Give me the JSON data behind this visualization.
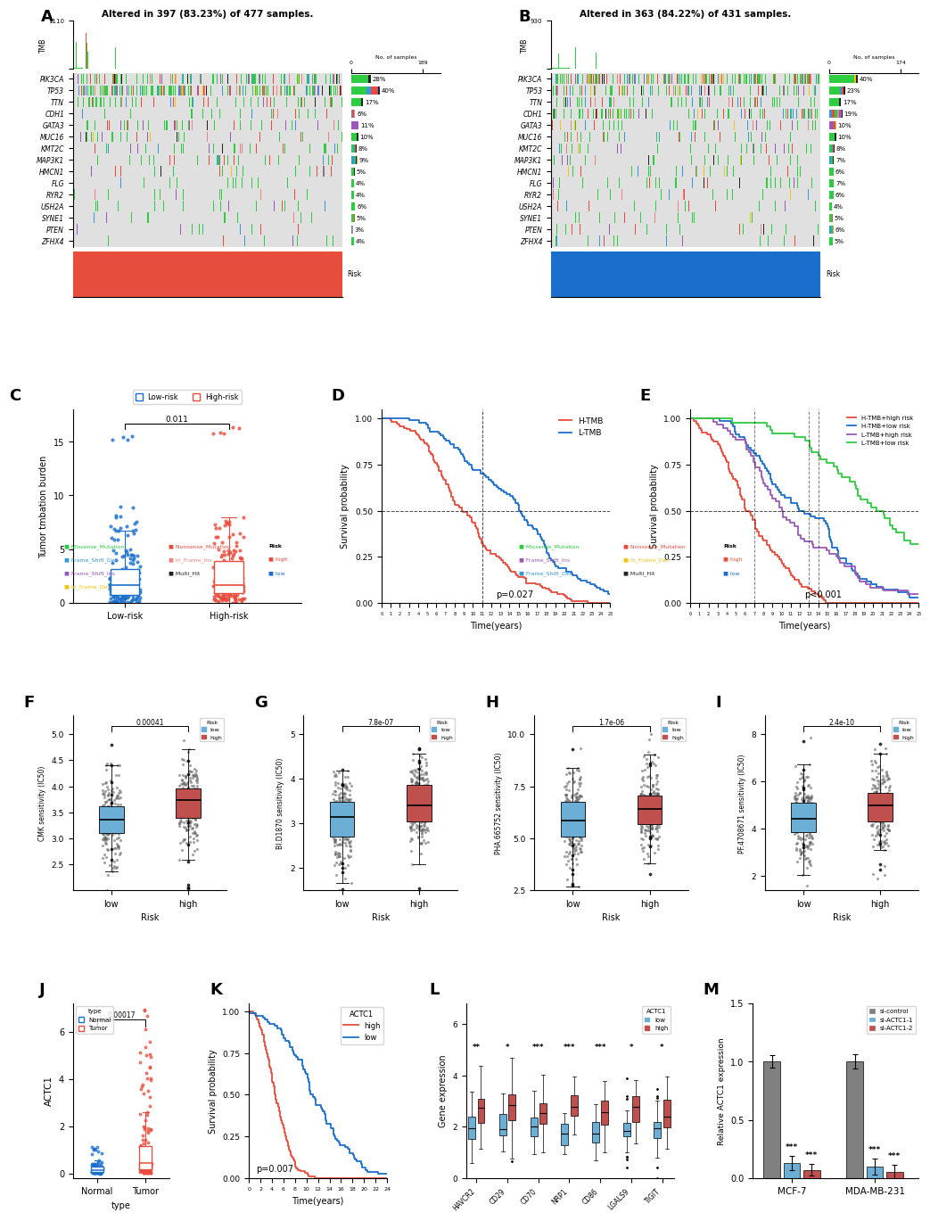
{
  "panel_A": {
    "title": "Altered in 397 (83.23%) of 477 samples.",
    "genes": [
      "PIK3CA",
      "TP53",
      "TTN",
      "CDH1",
      "GATA3",
      "MUC16",
      "KMT2C",
      "MAP3K1",
      "HMCN1",
      "FLG",
      "RYR2",
      "USH2A",
      "SYNE1",
      "PTEN",
      "ZFHX4"
    ],
    "pcts": [
      28,
      40,
      17,
      6,
      11,
      10,
      8,
      9,
      5,
      4,
      4,
      6,
      5,
      3,
      4
    ],
    "bar_max": 189,
    "tmb_max": 1110,
    "risk_color": "#e74c3c",
    "n_samples": 477
  },
  "panel_B": {
    "title": "Altered in 363 (84.22%) of 431 samples.",
    "genes": [
      "PIK3CA",
      "TP53",
      "TTN",
      "CDH1",
      "GATA3",
      "MUC16",
      "KMT2C",
      "MAP3K1",
      "HMCN1",
      "FLG",
      "RYR2",
      "USH2A",
      "SYNE1",
      "PTEN",
      "ZFHX4"
    ],
    "pcts": [
      40,
      23,
      17,
      19,
      10,
      10,
      8,
      7,
      6,
      7,
      6,
      4,
      5,
      6,
      5
    ],
    "bar_max": 174,
    "tmb_max": 930,
    "risk_color": "#1a6fcd",
    "n_samples": 431
  },
  "mutation_colors": {
    "Missense_Mutation": "#2ecc40",
    "Nonsense_Mutation": "#e74c3c",
    "Frame_Shift_Del": "#3498db",
    "In_Frame_Ins": "#f08080",
    "Frame_Shift_Ins": "#9b59b6",
    "Multi_Hit": "#222222",
    "In_Frame_Del": "#f1c40f"
  },
  "legend_A": {
    "col1": [
      [
        "Missense_Mutation",
        "#2ecc40"
      ],
      [
        "Frame_Shift_Del",
        "#3498db"
      ],
      [
        "Frame_Shift_Ins",
        "#9b59b6"
      ],
      [
        "In_Frame_Del",
        "#f1c40f"
      ]
    ],
    "col2": [
      [
        "Nonsense_Mutation",
        "#e74c3c"
      ],
      [
        "In_Frame_Ins",
        "#f08080"
      ],
      [
        "Multi_Hit",
        "#222222"
      ]
    ],
    "risk": [
      [
        "high",
        "#e74c3c"
      ],
      [
        "low",
        "#1a6fcd"
      ]
    ]
  },
  "legend_B": {
    "col1": [
      [
        "Missense_Mutation",
        "#2ecc40"
      ],
      [
        "Frame_Shift_Ins",
        "#9b59b6"
      ],
      [
        "Frame_Shift_Del",
        "#3498db"
      ]
    ],
    "col2": [
      [
        "Nonsense_Mutation",
        "#e74c3c"
      ],
      [
        "In_Frame_Del",
        "#f1c40f"
      ],
      [
        "Multi_Hit",
        "#222222"
      ]
    ],
    "risk": [
      [
        "high",
        "#e74c3c"
      ],
      [
        "low",
        "#1a6fcd"
      ]
    ]
  },
  "panel_C": {
    "ylabel": "Tumor tmbation burden",
    "pvalue": "0.011",
    "ylim": [
      0,
      17
    ],
    "yticks": [
      0,
      5,
      10,
      15
    ],
    "low_color": "#1a6fcd",
    "high_color": "#e74c3c"
  },
  "panel_D": {
    "xlabel": "Time(years)",
    "ylabel": "Survival probability",
    "pvalue": "p=0.027",
    "H_color": "#e74c3c",
    "L_color": "#1a6fcd",
    "yticks": [
      0.0,
      0.25,
      0.5,
      0.75,
      1.0
    ],
    "xticks": [
      0,
      1,
      2,
      3,
      4,
      5,
      6,
      7,
      8,
      9,
      10,
      11,
      12,
      13,
      14,
      15,
      16,
      17,
      18,
      19,
      20,
      21,
      22,
      23,
      24,
      25
    ]
  },
  "panel_E": {
    "xlabel": "Time(years)",
    "ylabel": "Survival probability",
    "pvalue": "p<0.001",
    "colors": [
      "#e74c3c",
      "#1a6fcd",
      "#9b59b6",
      "#2ecc40"
    ],
    "labels": [
      "H-TMB+high risk",
      "H-TMB+low risk",
      "L-TMB+high risk",
      "L-TMB+low risk"
    ],
    "yticks": [
      0.0,
      0.25,
      0.5,
      0.75,
      1.0
    ],
    "xticks": [
      0,
      1,
      2,
      3,
      4,
      5,
      6,
      7,
      8,
      9,
      10,
      11,
      12,
      13,
      14,
      15,
      16,
      17,
      18,
      19,
      20,
      21,
      22,
      23,
      24,
      25
    ]
  },
  "panel_F": {
    "ylabel": "CMK sensitivity (IC50)",
    "pvalue": "0.00041",
    "low_color": "#6baed6",
    "high_color": "#c0504d",
    "ylim": [
      2.0,
      5.0
    ],
    "yticks": [
      2.5,
      3.0,
      3.5,
      4.0,
      4.5,
      5.0
    ]
  },
  "panel_G": {
    "ylabel": "BI.D1870 sensitivity (IC50)",
    "pvalue": "7.8e-07",
    "low_color": "#6baed6",
    "high_color": "#c0504d",
    "ylim": [
      1.5,
      5.0
    ],
    "yticks": [
      2.0,
      3.0,
      4.0,
      5.0
    ]
  },
  "panel_H": {
    "ylabel": "PHA.665752 sensitivity (IC50)",
    "pvalue": "1.7e-06",
    "low_color": "#6baed6",
    "high_color": "#c0504d",
    "ylim": [
      2.5,
      10.0
    ],
    "yticks": [
      2.5,
      5.0,
      7.5,
      10.0
    ]
  },
  "panel_I": {
    "ylabel": "PF.4708671 sensitivity (IC50)",
    "pvalue": "2.4e-10",
    "low_color": "#6baed6",
    "high_color": "#c0504d",
    "ylim": [
      1.4,
      8.0
    ],
    "yticks": [
      2,
      4,
      6,
      8
    ]
  },
  "panel_J": {
    "ylabel": "ACTC1",
    "xlabel": "type",
    "pvalue": "0.00017",
    "normal_color": "#1a6fcd",
    "tumor_color": "#e74c3c"
  },
  "panel_K": {
    "xlabel": "Time(years)",
    "ylabel": "Survival probability",
    "pvalue": "p=0.007",
    "high_color": "#e74c3c",
    "low_color": "#1a6fcd",
    "xticks": [
      0,
      2,
      4,
      6,
      8,
      10,
      12,
      14,
      16,
      18,
      20,
      22,
      24
    ],
    "yticks": [
      0.0,
      0.25,
      0.5,
      0.75,
      1.0
    ]
  },
  "panel_L": {
    "ylabel": "Gene expression",
    "genes": [
      "HAVCR2",
      "CD29",
      "CD70",
      "NRP1",
      "CD86",
      "LGALS9",
      "TIGIT"
    ],
    "low_color": "#6baed6",
    "high_color": "#c0504d",
    "sig_labels": [
      "**",
      "*",
      "***",
      "***",
      "***",
      "*",
      "*"
    ],
    "ylim": [
      0,
      6
    ],
    "yticks": [
      0,
      2,
      4,
      6
    ]
  },
  "panel_M": {
    "ylabel": "Relative ACTC1 expression",
    "groups": [
      "MCF-7",
      "MDA-MB-231"
    ],
    "bars": [
      "si-control",
      "si-ACTC1-1",
      "si-ACTC1-2"
    ],
    "bar_colors": [
      "#808080",
      "#6baed6",
      "#c0504d"
    ],
    "values_mcf7": [
      1.0,
      0.13,
      0.07
    ],
    "values_mda": [
      1.0,
      0.1,
      0.05
    ],
    "ylim": [
      0,
      1.5
    ],
    "yticks": [
      0.0,
      0.5,
      1.0,
      1.5
    ]
  }
}
